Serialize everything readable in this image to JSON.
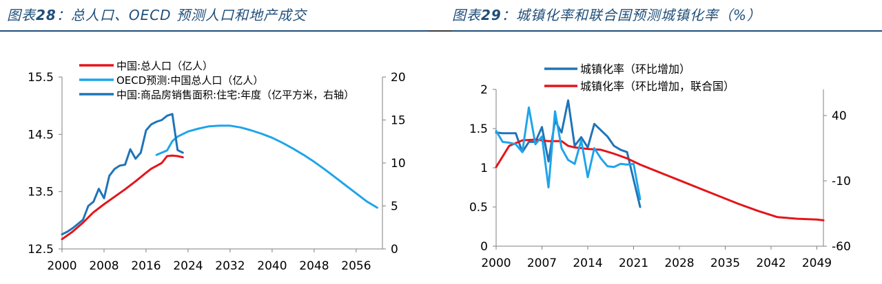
{
  "figures": [
    {
      "title_prefix": "图表",
      "title_number": "28",
      "title_text": "：总人口、OECD 预测人口和地产成交"
    },
    {
      "title_prefix": "图表",
      "title_number": "29",
      "title_text": "：城镇化率和联合国预测城镇化率（%）"
    }
  ],
  "chart_data": [
    {
      "type": "line",
      "title": "",
      "xlabel": "",
      "ylabel": "",
      "legend_position": "top",
      "grid": false,
      "x_ticks": [
        2000,
        2008,
        2016,
        2024,
        2032,
        2040,
        2048,
        2056
      ],
      "xlim": [
        2000,
        2061
      ],
      "y_left": {
        "lim": [
          12.5,
          15.5
        ],
        "ticks": [
          12.5,
          13.5,
          14.5,
          15.5
        ],
        "tick_labels": [
          "12.5",
          "13.5",
          "14.5",
          "15.5"
        ]
      },
      "y_right": {
        "lim": [
          0,
          20
        ],
        "ticks": [
          0,
          5,
          10,
          15,
          20
        ],
        "tick_labels": [
          "0",
          "5",
          "10",
          "15",
          "20"
        ]
      },
      "series": [
        {
          "name": "中国:总人口（亿人）",
          "color": "#e3151b",
          "axis": "left",
          "x": [
            2000,
            2002,
            2004,
            2006,
            2008,
            2010,
            2012,
            2014,
            2016,
            2017,
            2018,
            2019,
            2020,
            2021,
            2022,
            2023
          ],
          "y": [
            12.67,
            12.8,
            12.96,
            13.14,
            13.28,
            13.41,
            13.54,
            13.68,
            13.83,
            13.9,
            13.95,
            14.0,
            14.12,
            14.13,
            14.12,
            14.1
          ]
        },
        {
          "name": "OECD预测:中国总人口（亿人）",
          "color": "#1fa4ea",
          "axis": "left",
          "x": [
            2018,
            2019,
            2020,
            2021,
            2022,
            2024,
            2026,
            2028,
            2030,
            2032,
            2034,
            2036,
            2038,
            2040,
            2042,
            2044,
            2046,
            2048,
            2050,
            2052,
            2054,
            2056,
            2058,
            2060
          ],
          "y": [
            14.14,
            14.18,
            14.22,
            14.38,
            14.46,
            14.55,
            14.6,
            14.64,
            14.65,
            14.65,
            14.62,
            14.57,
            14.51,
            14.44,
            14.35,
            14.25,
            14.14,
            14.02,
            13.89,
            13.75,
            13.61,
            13.47,
            13.33,
            13.22
          ]
        },
        {
          "name": "中国:商品房销售面积:住宅:年度（亿平方米，右轴）",
          "color": "#1f74b7",
          "axis": "right",
          "x": [
            2000,
            2001,
            2002,
            2003,
            2004,
            2005,
            2006,
            2007,
            2008,
            2009,
            2010,
            2011,
            2012,
            2013,
            2014,
            2015,
            2016,
            2017,
            2018,
            2019,
            2020,
            2021,
            2022,
            2023
          ],
          "y": [
            1.7,
            2.0,
            2.4,
            2.9,
            3.4,
            5.0,
            5.5,
            7.0,
            5.9,
            8.5,
            9.3,
            9.7,
            9.8,
            11.6,
            10.5,
            11.2,
            13.8,
            14.5,
            14.8,
            15.0,
            15.5,
            15.7,
            11.5,
            11.2
          ]
        }
      ]
    },
    {
      "type": "line",
      "title": "",
      "xlabel": "",
      "ylabel": "",
      "legend_position": "top",
      "grid": false,
      "x_ticks": [
        2000,
        2007,
        2014,
        2021,
        2028,
        2035,
        2042,
        2049
      ],
      "xlim": [
        2000,
        2050
      ],
      "y_left": {
        "lim": [
          0,
          2
        ],
        "ticks": [
          0,
          0.5,
          1,
          1.5,
          2
        ],
        "tick_labels": [
          "0",
          "0.5",
          "1",
          "1.5",
          "2"
        ]
      },
      "y_right": {
        "lim": [
          -60,
          60
        ],
        "ticks": [
          -60,
          -10,
          40
        ],
        "tick_labels": [
          "-60",
          "-10",
          "40"
        ]
      },
      "series": [
        {
          "name": "城镇化率（环比增加）",
          "color": "#1f74b7",
          "axis": "left",
          "x": [
            2000,
            2001,
            2002,
            2003,
            2004,
            2005,
            2006,
            2007,
            2008,
            2009,
            2010,
            2011,
            2012,
            2013,
            2014,
            2015,
            2016,
            2017,
            2018,
            2019,
            2020,
            2021,
            2022
          ],
          "y": [
            1.45,
            1.44,
            1.44,
            1.44,
            1.2,
            1.33,
            1.33,
            1.52,
            1.08,
            1.6,
            1.45,
            1.86,
            1.28,
            1.39,
            1.26,
            1.56,
            1.48,
            1.4,
            1.28,
            1.23,
            1.2,
            0.85,
            0.5
          ]
        },
        {
          "name": "城镇化率（环比增加，联合国）",
          "color": "#e3151b",
          "axis": "left",
          "x": [
            2000,
            2002,
            2004,
            2006,
            2008,
            2010,
            2011,
            2012,
            2014,
            2016,
            2018,
            2020,
            2022,
            2025,
            2028,
            2031,
            2034,
            2037,
            2040,
            2043,
            2046,
            2049,
            2050
          ],
          "y": [
            1.01,
            1.28,
            1.35,
            1.36,
            1.34,
            1.34,
            1.28,
            1.26,
            1.24,
            1.23,
            1.18,
            1.12,
            1.04,
            0.94,
            0.84,
            0.74,
            0.64,
            0.54,
            0.45,
            0.37,
            0.35,
            0.34,
            0.33
          ]
        },
        {
          "name": "",
          "color": "#1fa4ea",
          "axis": "left",
          "x": [
            2000,
            2001,
            2002,
            2003,
            2004,
            2005,
            2006,
            2007,
            2008,
            2009,
            2010,
            2011,
            2012,
            2013,
            2014,
            2015,
            2016,
            2017,
            2018,
            2019,
            2020,
            2021,
            2022
          ],
          "y": [
            1.47,
            1.33,
            1.32,
            1.3,
            1.2,
            1.77,
            1.3,
            1.4,
            0.75,
            1.72,
            1.25,
            1.1,
            1.05,
            1.35,
            0.88,
            1.25,
            1.12,
            1.02,
            1.01,
            1.05,
            1.04,
            1.05,
            0.6
          ]
        }
      ]
    }
  ]
}
